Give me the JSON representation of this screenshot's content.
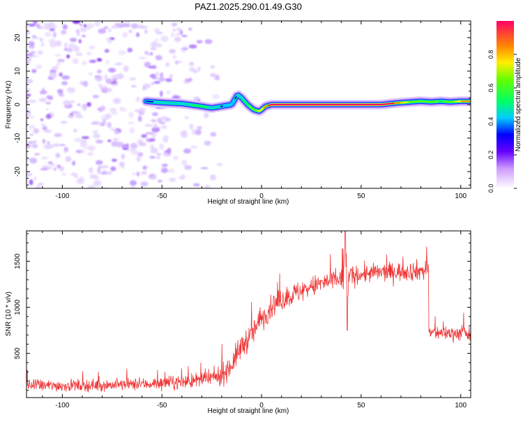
{
  "figure_title": "PAZ1.2025.290.01.49.G30",
  "colorbar": {
    "label": "Normalized spectral amplitude",
    "ticks": [
      "0.0",
      "0.2",
      "0.4",
      "0.6",
      "0.8"
    ],
    "tick_values": [
      0.0,
      0.2,
      0.4,
      0.6,
      0.8
    ],
    "range": [
      0,
      1
    ]
  },
  "colors": {
    "signal": "#ee3333",
    "noise": "#8833ee",
    "axis": "#000000",
    "background": "#ffffff"
  },
  "chart_data": [
    {
      "type": "heatmap",
      "title": "PAZ1.2025.290.01.49.G30",
      "xlabel": "Height of straight line (km)",
      "ylabel": "Frequency (Hz)",
      "xlim": [
        -118,
        105
      ],
      "ylim": [
        -25,
        25
      ],
      "xticks": [
        -100,
        -50,
        0,
        50,
        100
      ],
      "xtick_labels": [
        "-100",
        "-50",
        "0",
        "50",
        "100"
      ],
      "yticks": [
        -20,
        -10,
        0,
        10,
        20
      ],
      "ytick_labels": [
        "-20",
        "-10",
        "0",
        "10",
        "20"
      ],
      "noise_region": {
        "x": [
          -118,
          -18
        ],
        "frequency_range": [
          -25,
          25
        ],
        "amplitude": [
          0.0,
          0.15
        ]
      },
      "ridge": {
        "description": "dominant spectral peak vs height",
        "x": [
          -58,
          -50,
          -40,
          -30,
          -25,
          -20,
          -15,
          -12,
          -10,
          -7,
          -4,
          -1,
          2,
          5,
          10,
          20,
          40,
          60,
          68,
          75,
          80,
          85,
          90,
          95,
          100,
          105
        ],
        "frequency": [
          1,
          0.6,
          0.3,
          -0.5,
          -1,
          -0.5,
          0,
          3,
          2,
          0,
          -1.5,
          -2,
          -0.5,
          0,
          0,
          0,
          0,
          0,
          0.5,
          0.8,
          1,
          0.8,
          1,
          0.8,
          1,
          1
        ],
        "amplitude": [
          0.3,
          0.35,
          0.4,
          0.45,
          0.4,
          0.3,
          0.25,
          0.35,
          0.4,
          0.5,
          0.6,
          0.7,
          0.8,
          0.9,
          0.95,
          1.0,
          1.0,
          1.0,
          0.8,
          0.6,
          0.55,
          0.6,
          0.5,
          0.6,
          0.75,
          0.8
        ]
      }
    },
    {
      "type": "line",
      "title": "",
      "xlabel": "Height of straight line (km)",
      "ylabel": "SNR (10 * v/v)",
      "xlim": [
        -118,
        105
      ],
      "ylim": [
        20,
        1830
      ],
      "xticks": [
        -100,
        -50,
        0,
        50,
        100
      ],
      "xtick_labels": [
        "-100",
        "-50",
        "0",
        "50",
        "100"
      ],
      "yticks": [
        500,
        1000,
        1500
      ],
      "ytick_labels": [
        "500",
        "1000",
        "1500"
      ],
      "series": [
        {
          "name": "SNR",
          "color": "#ee3333",
          "envelope_x": [
            -118,
            -100,
            -80,
            -60,
            -40,
            -30,
            -25,
            -20,
            -15,
            -10,
            -5,
            0,
            5,
            10,
            20,
            30,
            40,
            50,
            60,
            70,
            80,
            83,
            84,
            90,
            100,
            105
          ],
          "envelope_mean": [
            150,
            150,
            155,
            165,
            190,
            210,
            230,
            260,
            380,
            580,
            700,
            880,
            1000,
            1080,
            1180,
            1260,
            1310,
            1360,
            1380,
            1390,
            1400,
            1400,
            730,
            720,
            720,
            700
          ],
          "envelope_spread": [
            70,
            70,
            70,
            70,
            80,
            90,
            100,
            120,
            140,
            150,
            150,
            140,
            130,
            130,
            130,
            120,
            130,
            110,
            110,
            110,
            120,
            120,
            90,
            80,
            90,
            90
          ],
          "spike_x": [
            42
          ],
          "spike_peak": [
            1830
          ],
          "dip_x": [
            43
          ],
          "dip_value": [
            750
          ],
          "samples": 1200
        }
      ]
    }
  ]
}
